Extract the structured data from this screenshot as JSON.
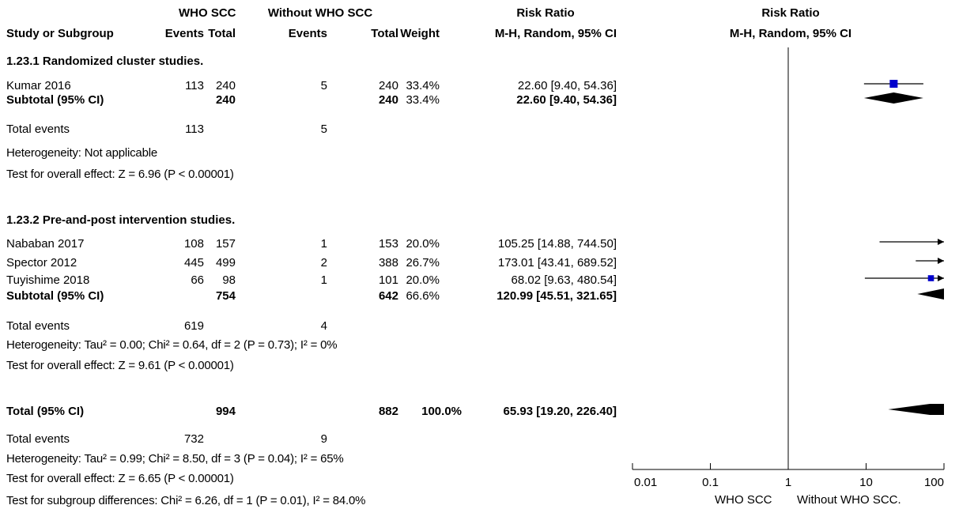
{
  "headers": {
    "group1": "WHO SCC",
    "group2": "Without WHO SCC",
    "riskratio": "Risk Ratio",
    "plot_title": "Risk Ratio",
    "study": "Study or Subgroup",
    "events1": "Events",
    "total1": "Total",
    "events2": "Events",
    "total2": "Total",
    "weight": "Weight",
    "method": "M-H, Random, 95% CI",
    "plot_method": "M-H, Random, 95% CI"
  },
  "sub1": {
    "title": "1.23.1 Randomized cluster studies.",
    "rows": [
      {
        "study": "Kumar 2016",
        "e1": "113",
        "t1": "240",
        "e2": "5",
        "t2": "240",
        "weight": "33.4%",
        "ci": "22.60 [9.40, 54.36]"
      }
    ],
    "subtotal": {
      "label": "Subtotal (95% CI)",
      "t1": "240",
      "t2": "240",
      "weight": "33.4%",
      "ci": "22.60 [9.40, 54.36]"
    },
    "events": {
      "label": "Total events",
      "e1": "113",
      "e2": "5"
    },
    "heterogeneity": "Heterogeneity: Not applicable",
    "overall": "Test for overall effect: Z = 6.96 (P < 0.00001)"
  },
  "sub2": {
    "title": "1.23.2 Pre-and-post intervention studies.",
    "rows": [
      {
        "study": "Nababan 2017",
        "e1": "108",
        "t1": "157",
        "e2": "1",
        "t2": "153",
        "weight": "20.0%",
        "ci": "105.25 [14.88, 744.50]"
      },
      {
        "study": "Spector 2012",
        "e1": "445",
        "t1": "499",
        "e2": "2",
        "t2": "388",
        "weight": "26.7%",
        "ci": "173.01 [43.41, 689.52]"
      },
      {
        "study": "Tuyishime 2018",
        "e1": "66",
        "t1": "98",
        "e2": "1",
        "t2": "101",
        "weight": "20.0%",
        "ci": "68.02 [9.63, 480.54]"
      }
    ],
    "subtotal": {
      "label": "Subtotal (95% CI)",
      "t1": "754",
      "t2": "642",
      "weight": "66.6%",
      "ci": "120.99 [45.51, 321.65]"
    },
    "events": {
      "label": "Total events",
      "e1": "619",
      "e2": "4"
    },
    "heterogeneity": "Heterogeneity: Tau² = 0.00; Chi² = 0.64, df = 2 (P = 0.73); I² = 0%",
    "overall": "Test for overall effect: Z = 9.61 (P < 0.00001)"
  },
  "total": {
    "label": "Total (95% CI)",
    "t1": "994",
    "t2": "882",
    "weight": "100.0%",
    "ci": "65.93 [19.20, 226.40]",
    "events": {
      "label": "Total events",
      "e1": "732",
      "e2": "9"
    },
    "heterogeneity": "Heterogeneity: Tau² = 0.99; Chi² = 8.50, df = 3 (P = 0.04); I² = 65%",
    "overall": "Test for overall effect: Z = 6.65 (P < 0.00001)",
    "subgroup": "Test for subgroup differences: Chi² = 6.26, df = 1 (P = 0.01), I² = 84.0%"
  },
  "axis": {
    "favours_left": "WHO SCC",
    "favours_right": "Without WHO SCC."
  },
  "chart_data": {
    "type": "forest",
    "scale": "log",
    "xlim": [
      0.01,
      100
    ],
    "ticks": [
      0.01,
      0.1,
      1,
      10,
      100
    ],
    "tick_labels": [
      "0.01",
      "0.1",
      "1",
      "10",
      "100"
    ],
    "reference_line": 1,
    "marker_color": "#0000cc",
    "studies": [
      {
        "name": "Kumar 2016",
        "rr": 22.6,
        "lo": 9.4,
        "hi": 54.36,
        "weight": 33.4
      },
      {
        "name": "Nababan 2017",
        "rr": 105.25,
        "lo": 14.88,
        "hi": 744.5,
        "weight": 20.0
      },
      {
        "name": "Spector 2012",
        "rr": 173.01,
        "lo": 43.41,
        "hi": 689.52,
        "weight": 26.7
      },
      {
        "name": "Tuyishime 2018",
        "rr": 68.02,
        "lo": 9.63,
        "hi": 480.54,
        "weight": 20.0
      }
    ],
    "diamonds": [
      {
        "name": "Subtotal 1.23.1",
        "rr": 22.6,
        "lo": 9.4,
        "hi": 54.36
      },
      {
        "name": "Subtotal 1.23.2",
        "rr": 120.99,
        "lo": 45.51,
        "hi": 321.65
      },
      {
        "name": "Total",
        "rr": 65.93,
        "lo": 19.2,
        "hi": 226.4
      }
    ]
  }
}
